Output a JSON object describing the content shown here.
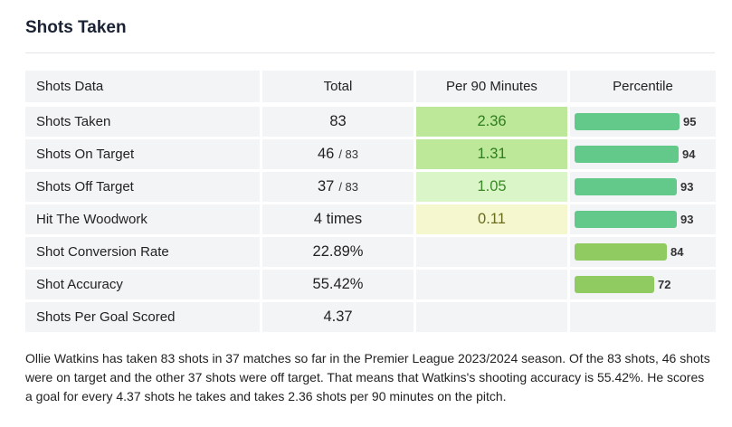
{
  "title": "Shots Taken",
  "headers": {
    "label": "Shots Data",
    "total": "Total",
    "per90": "Per 90 Minutes",
    "percentile": "Percentile"
  },
  "rows": [
    {
      "label": "Shots Taken",
      "total": "83",
      "total_suffix": "",
      "per90": "2.36",
      "per90_bg": "#bde89a",
      "per90_color": "#2f7d1c",
      "percentile": 95,
      "bar_color": "#62c98a"
    },
    {
      "label": "Shots On Target",
      "total": "46",
      "total_suffix": "/ 83",
      "per90": "1.31",
      "per90_bg": "#bde89a",
      "per90_color": "#2f7d1c",
      "percentile": 94,
      "bar_color": "#62c98a"
    },
    {
      "label": "Shots Off Target",
      "total": "37",
      "total_suffix": "/ 83",
      "per90": "1.05",
      "per90_bg": "#daf5c8",
      "per90_color": "#3b8a25",
      "percentile": 93,
      "bar_color": "#62c98a"
    },
    {
      "label": "Hit The Woodwork",
      "total": "4 times",
      "total_suffix": "",
      "per90": "0.11",
      "per90_bg": "#f5f7cf",
      "per90_color": "#6b6b1e",
      "percentile": 93,
      "bar_color": "#62c98a"
    },
    {
      "label": "Shot Conversion Rate",
      "total": "22.89%",
      "total_suffix": "",
      "per90": "",
      "per90_bg": "",
      "per90_color": "",
      "percentile": 84,
      "bar_color": "#8fcb60"
    },
    {
      "label": "Shot Accuracy",
      "total": "55.42%",
      "total_suffix": "",
      "per90": "",
      "per90_bg": "",
      "per90_color": "",
      "percentile": 72,
      "bar_color": "#8fcb60"
    },
    {
      "label": "Shots Per Goal Scored",
      "total": "4.37",
      "total_suffix": "",
      "per90": "",
      "per90_bg": "",
      "per90_color": "",
      "percentile": null,
      "bar_color": ""
    }
  ],
  "description": "Ollie Watkins has taken 83 shots in 37 matches so far in the Premier League 2023/2024 season. Of the 83 shots, 46 shots were on target and the other 37 shots were off target. That means that Watkins's shooting accuracy is 55.42%. He scores a goal for every 4.37 shots he takes and takes 2.36 shots per 90 minutes on the pitch."
}
